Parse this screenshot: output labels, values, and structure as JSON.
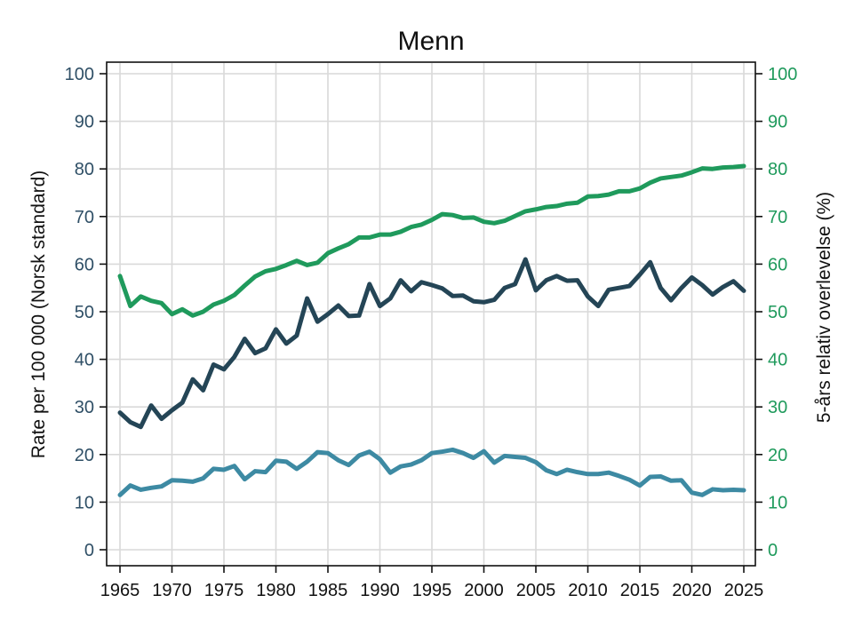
{
  "chart_data": {
    "type": "line",
    "title": "Menn",
    "ylabel_left": "Rate per 100 000 (Norsk standard)",
    "ylabel_right": "5-års relativ overlevelse (%)",
    "xlim": [
      1965,
      2025
    ],
    "ylim_left": [
      0,
      100
    ],
    "ylim_right": [
      0,
      100
    ],
    "x_ticks": [
      1965,
      1970,
      1975,
      1980,
      1985,
      1990,
      1995,
      2000,
      2005,
      2010,
      2015,
      2020,
      2025
    ],
    "y_ticks": [
      0,
      10,
      20,
      30,
      40,
      50,
      60,
      70,
      80,
      90,
      100
    ],
    "grid": true,
    "colors": {
      "left_axis": "#2f4f66",
      "right_axis": "#1f9a5c"
    },
    "x": [
      1965,
      1966,
      1967,
      1968,
      1969,
      1970,
      1971,
      1972,
      1973,
      1974,
      1975,
      1976,
      1977,
      1978,
      1979,
      1980,
      1981,
      1982,
      1983,
      1984,
      1985,
      1986,
      1987,
      1988,
      1989,
      1990,
      1991,
      1992,
      1993,
      1994,
      1995,
      1996,
      1997,
      1998,
      1999,
      2000,
      2001,
      2002,
      2003,
      2004,
      2005,
      2006,
      2007,
      2008,
      2009,
      2010,
      2011,
      2012,
      2013,
      2014,
      2015,
      2016,
      2017,
      2018,
      2019,
      2020,
      2021,
      2022,
      2023,
      2024,
      2025
    ],
    "series": [
      {
        "color": "#1f9a5c",
        "axis": "right",
        "values": [
          57.5,
          51.2,
          53.2,
          52.3,
          51.8,
          49.5,
          50.5,
          49.2,
          50.0,
          51.5,
          52.3,
          53.5,
          55.5,
          57.4,
          58.5,
          59.0,
          59.8,
          60.7,
          59.8,
          60.3,
          62.3,
          63.3,
          64.2,
          65.6,
          65.6,
          66.2,
          66.2,
          66.8,
          67.8,
          68.3,
          69.3,
          70.5,
          70.3,
          69.7,
          69.8,
          68.9,
          68.6,
          69.1,
          70.1,
          71.1,
          71.5,
          72.0,
          72.2,
          72.7,
          72.9,
          74.2,
          74.3,
          74.6,
          75.3,
          75.3,
          75.9,
          77.1,
          78.0,
          78.3,
          78.6,
          79.3,
          80.1,
          80.0,
          80.3,
          80.4,
          80.6
        ]
      },
      {
        "color": "#244556",
        "axis": "left",
        "values": [
          28.8,
          26.8,
          25.8,
          30.3,
          27.5,
          29.3,
          30.9,
          35.8,
          33.5,
          38.9,
          37.9,
          40.5,
          44.3,
          41.3,
          42.3,
          46.3,
          43.3,
          45.0,
          52.8,
          47.9,
          49.5,
          51.3,
          49.1,
          49.2,
          55.8,
          51.2,
          52.8,
          56.6,
          54.3,
          56.2,
          55.6,
          54.9,
          53.3,
          53.4,
          52.2,
          52.0,
          52.5,
          55.0,
          55.8,
          61.0,
          54.5,
          56.6,
          57.5,
          56.5,
          56.6,
          53.2,
          51.2,
          54.6,
          55.0,
          55.4,
          57.8,
          60.4,
          55.0,
          52.4,
          55.0,
          57.2,
          55.6,
          53.6,
          55.2,
          56.4,
          54.4
        ]
      },
      {
        "color": "#3d8aa3",
        "axis": "left",
        "values": [
          11.5,
          13.5,
          12.6,
          13.0,
          13.3,
          14.6,
          14.5,
          14.3,
          15.0,
          17.0,
          16.8,
          17.6,
          14.8,
          16.5,
          16.3,
          18.7,
          18.5,
          17.0,
          18.5,
          20.5,
          20.3,
          18.8,
          17.8,
          19.8,
          20.6,
          19.0,
          16.2,
          17.5,
          17.9,
          18.8,
          20.3,
          20.6,
          21.0,
          20.3,
          19.3,
          20.7,
          18.3,
          19.7,
          19.5,
          19.3,
          18.4,
          16.7,
          15.9,
          16.8,
          16.3,
          15.9,
          15.9,
          16.2,
          15.5,
          14.7,
          13.5,
          15.3,
          15.4,
          14.5,
          14.6,
          12.0,
          11.5,
          12.7,
          12.5,
          12.6,
          12.5
        ]
      }
    ]
  }
}
